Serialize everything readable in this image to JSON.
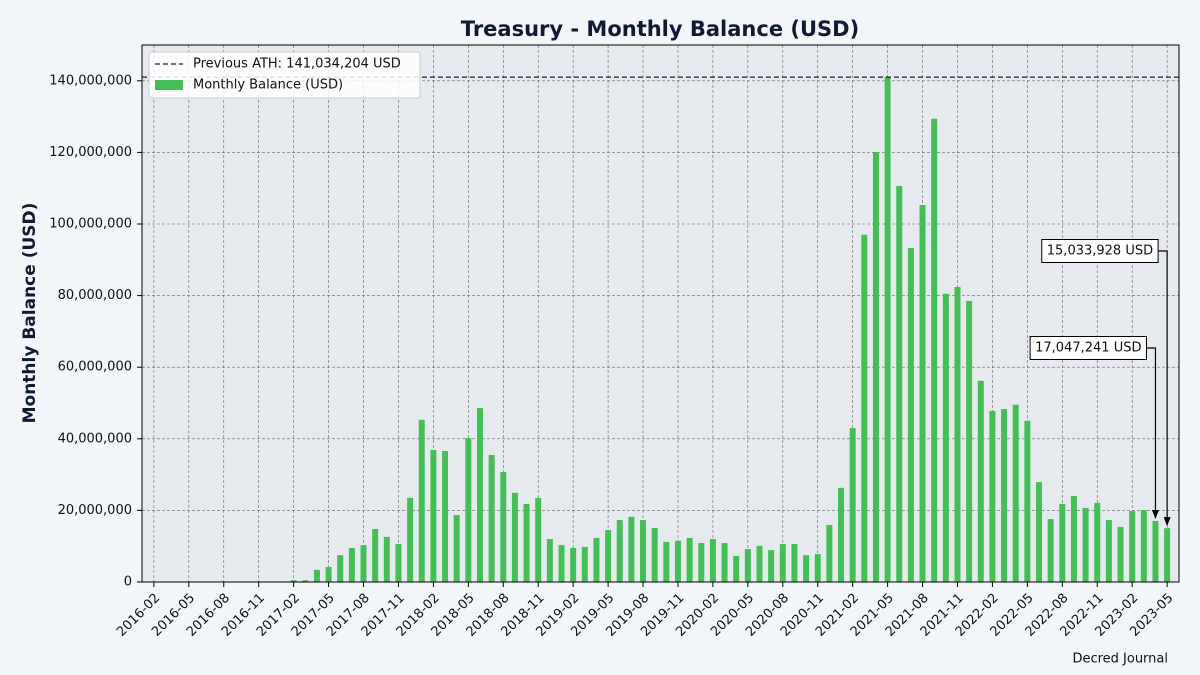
{
  "chart_data": {
    "type": "bar",
    "title": "Treasury - Monthly Balance (USD)",
    "ylabel": "Monthly Balance (USD)",
    "source": "Decred Journal",
    "categories": [
      "2016-02",
      null,
      null,
      "2016-05",
      null,
      null,
      "2016-08",
      null,
      null,
      "2016-11",
      null,
      null,
      "2017-02",
      null,
      null,
      "2017-05",
      null,
      null,
      "2017-08",
      null,
      null,
      "2017-11",
      null,
      null,
      "2018-02",
      null,
      null,
      "2018-05",
      null,
      null,
      "2018-08",
      null,
      null,
      "2018-11",
      null,
      null,
      "2019-02",
      null,
      null,
      "2019-05",
      null,
      null,
      "2019-08",
      null,
      null,
      "2019-11",
      null,
      null,
      "2020-02",
      null,
      null,
      "2020-05",
      null,
      null,
      "2020-08",
      null,
      null,
      "2020-11",
      null,
      null,
      "2021-02",
      null,
      null,
      "2021-05",
      null,
      null,
      "2021-08",
      null,
      null,
      "2021-11",
      null,
      null,
      "2022-02",
      null,
      null,
      "2022-05",
      null,
      null,
      "2022-08",
      null,
      null,
      "2022-11",
      null,
      null,
      "2023-02",
      null,
      null,
      "2023-05"
    ],
    "series": [
      {
        "name": "Monthly Balance (USD)",
        "color": "#44bf55",
        "values": [
          0,
          0,
          0,
          0,
          0,
          0,
          0,
          0,
          0,
          0,
          0,
          0,
          500000,
          500000,
          3400000,
          4200000,
          7500000,
          9500000,
          10300000,
          14800000,
          12600000,
          10600000,
          23500000,
          45300000,
          36900000,
          36600000,
          18700000,
          40200000,
          48600000,
          35500000,
          30700000,
          24900000,
          21800000,
          23500000,
          12000000,
          10300000,
          9500000,
          9800000,
          12300000,
          14500000,
          17300000,
          18200000,
          17300000,
          15100000,
          11200000,
          11500000,
          12300000,
          10900000,
          12000000,
          10900000,
          7300000,
          9200000,
          10100000,
          8900000,
          10600000,
          10600000,
          7500000,
          7800000,
          15900000,
          26300000,
          43000000,
          97000000,
          120100000,
          141034204,
          110600000,
          93300000,
          105300000,
          129400000,
          80500000,
          82400000,
          78500000,
          56200000,
          47800000,
          48300000,
          49500000,
          45000000,
          27900000,
          17600000,
          21800000,
          24000000,
          20700000,
          22100000,
          17300000,
          15400000,
          19800000,
          20100000,
          17047241,
          15033928
        ]
      }
    ],
    "ath": {
      "value": 141034204,
      "label": "Previous ATH: 141,034,204 USD",
      "color": "#1a1f3a"
    },
    "annotations": [
      {
        "x": "2023-04",
        "value": 17047241,
        "label": "17,047,241 USD"
      },
      {
        "x": "2023-05",
        "value": 15033928,
        "label": "15,033,928 USD"
      }
    ],
    "ylim": [
      0,
      150000000
    ],
    "yticks": [
      0,
      {
        "value": 20000000,
        "label": "20,000,000"
      },
      {
        "value": 40000000,
        "label": "40,000,000"
      },
      {
        "value": 60000000,
        "label": "60,000,000"
      },
      {
        "value": 80000000,
        "label": "80,000,000"
      },
      {
        "value": 100000000,
        "label": "100,000,000"
      },
      {
        "value": 120000000,
        "label": "120,000,000"
      },
      {
        "value": 140000000,
        "label": "140,000,000"
      }
    ],
    "grid": true,
    "legend": "upper left"
  }
}
